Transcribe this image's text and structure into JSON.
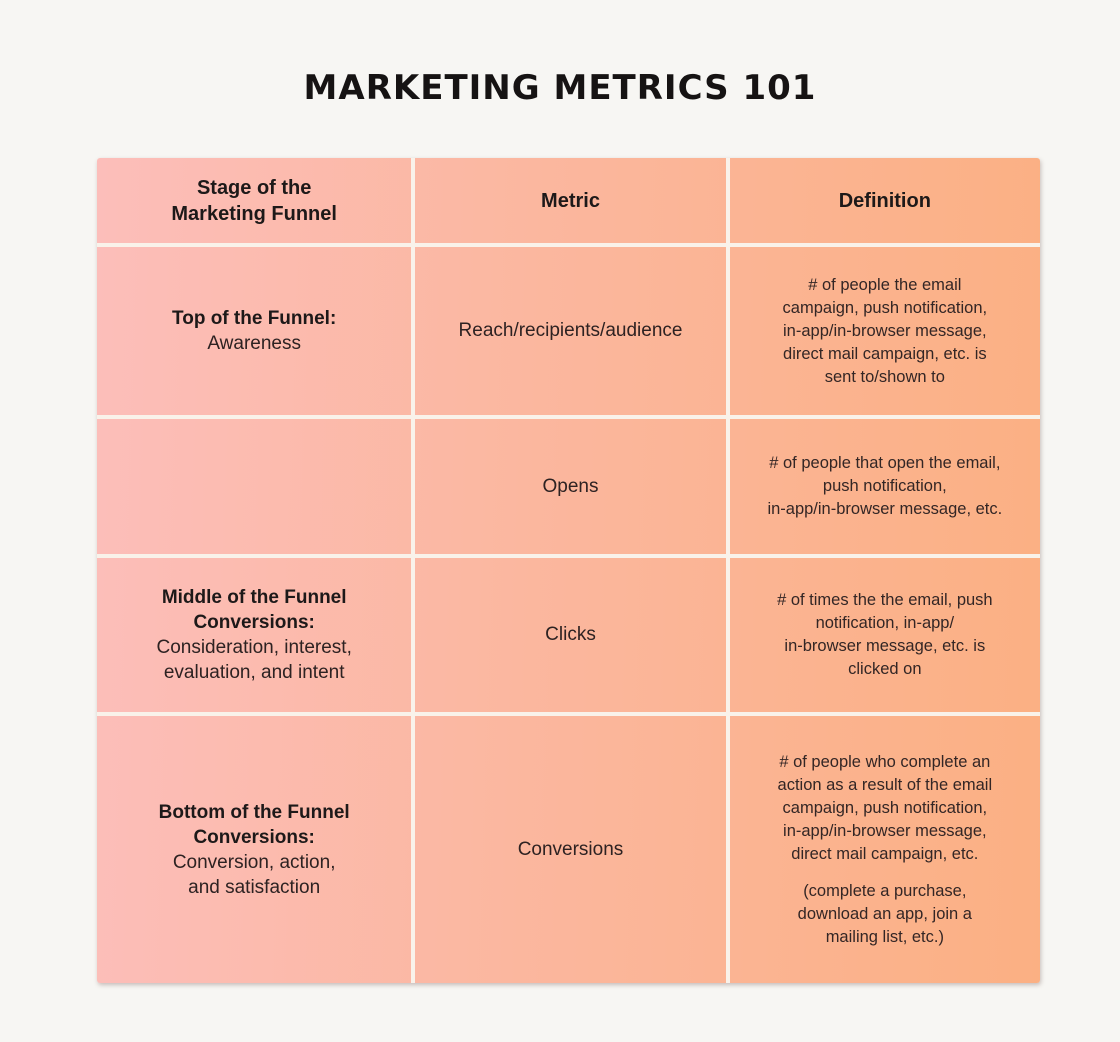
{
  "page": {
    "title": "MARKETING METRICS 101",
    "background_color": "#f7f6f3",
    "text_color": "#2d2222"
  },
  "table": {
    "gradient_left_color": "#fcbeba",
    "gradient_right_color": "#fbb083",
    "divider_color": "#f9f2ea",
    "headers": {
      "stage": "Stage of the\nMarketing Funnel",
      "metric": "Metric",
      "definition": "Definition"
    },
    "rows": [
      {
        "stage_bold": "Top of the Funnel:",
        "stage_sub": "Awareness",
        "metric": "Reach/recipients/audience",
        "definition": "# of people the email\ncampaign, push notification,\nin-app/in-browser message,\ndirect mail campaign, etc. is\nsent to/shown to"
      },
      {
        "stage_bold": "",
        "stage_sub": "",
        "metric": "Opens",
        "definition": "# of people that open the email,\npush notification,\nin-app/in-browser message, etc."
      },
      {
        "stage_bold": "Middle of the Funnel\nConversions:",
        "stage_sub": "Consideration, interest,\nevaluation, and intent",
        "metric": "Clicks",
        "definition": "# of times the the email, push\nnotification, in-app/\nin-browser message, etc. is\nclicked on"
      },
      {
        "stage_bold": "Bottom of the Funnel\nConversions:",
        "stage_sub": "Conversion, action,\nand satisfaction",
        "metric": "Conversions",
        "definition": "# of people who complete an\naction as a result of the email\ncampaign, push notification,\nin-app/in-browser message,\ndirect mail campaign, etc.",
        "definition_note": "(complete a purchase,\ndownload an app, join a\nmailing list, etc.)"
      }
    ]
  }
}
